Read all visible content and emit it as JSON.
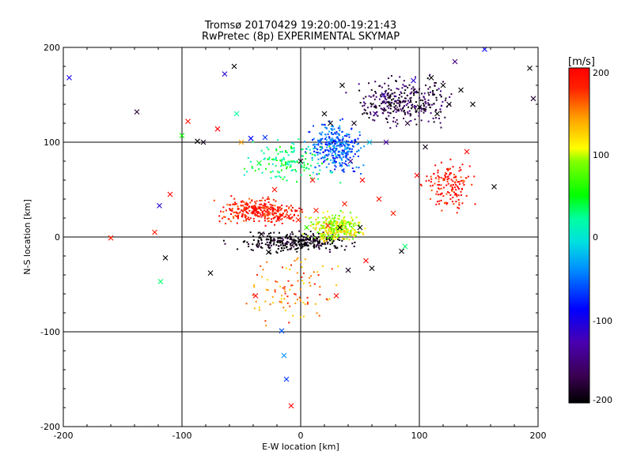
{
  "chart_data": {
    "type": "scatter",
    "title": "Tromsø 20170429 19:20:00-19:21:43",
    "subtitle": "RwPretec (8p) EXPERIMENTAL SKYMAP",
    "xlabel": "E-W location [km]",
    "ylabel": "N-S location [km]",
    "xlim": [
      -200,
      200
    ],
    "ylim": [
      -200,
      200
    ],
    "xticks": [
      "-200",
      "-100",
      "0",
      "100",
      "200"
    ],
    "yticks": [
      "-200",
      "-100",
      "0",
      "100",
      "200"
    ],
    "grid": "major lines at -100, 0, 100",
    "colorbar": {
      "label": "[m/s]",
      "min": -200,
      "max": 200,
      "ticks": [
        "200",
        "100",
        "0",
        "-100",
        "-200"
      ],
      "colormap": "rainbow: black -> violet -> blue -> cyan -> green -> yellow -> red"
    },
    "marker_styles": [
      "small dot",
      "x-cross"
    ],
    "points_x_cross": [
      {
        "x": -195,
        "y": 168,
        "v": -100
      },
      {
        "x": -160,
        "y": -1,
        "v": 180
      },
      {
        "x": -138,
        "y": 132,
        "v": -180
      },
      {
        "x": -123,
        "y": 5,
        "v": 180
      },
      {
        "x": -119,
        "y": 33,
        "v": -110
      },
      {
        "x": -118,
        "y": -47,
        "v": 30
      },
      {
        "x": -114,
        "y": -22,
        "v": -200
      },
      {
        "x": -110,
        "y": 45,
        "v": 200
      },
      {
        "x": -100,
        "y": 107,
        "v": 50
      },
      {
        "x": -95,
        "y": 122,
        "v": 190
      },
      {
        "x": -87,
        "y": 101,
        "v": -200
      },
      {
        "x": -82,
        "y": 100,
        "v": -190
      },
      {
        "x": -76,
        "y": -38,
        "v": -200
      },
      {
        "x": -70,
        "y": 114,
        "v": 200
      },
      {
        "x": -64,
        "y": 172,
        "v": -110
      },
      {
        "x": -56,
        "y": 180,
        "v": -200
      },
      {
        "x": -54,
        "y": 130,
        "v": 20
      },
      {
        "x": -50,
        "y": 100,
        "v": 140
      },
      {
        "x": -42,
        "y": 104,
        "v": -90
      },
      {
        "x": -38,
        "y": -62,
        "v": 200
      },
      {
        "x": -35,
        "y": 78,
        "v": 40
      },
      {
        "x": -33,
        "y": 3,
        "v": -200
      },
      {
        "x": -30,
        "y": 105,
        "v": -70
      },
      {
        "x": -27,
        "y": -16,
        "v": -200
      },
      {
        "x": -22,
        "y": 50,
        "v": 190
      },
      {
        "x": -18,
        "y": 20,
        "v": 200
      },
      {
        "x": -16,
        "y": -99,
        "v": -60
      },
      {
        "x": -14,
        "y": -125,
        "v": -40
      },
      {
        "x": -12,
        "y": -150,
        "v": -70
      },
      {
        "x": -10,
        "y": 22,
        "v": 190
      },
      {
        "x": -8,
        "y": -178,
        "v": 200
      },
      {
        "x": -5,
        "y": -6,
        "v": -190
      },
      {
        "x": -2,
        "y": 18,
        "v": 180
      },
      {
        "x": 0,
        "y": 80,
        "v": -200
      },
      {
        "x": 5,
        "y": 10,
        "v": 60
      },
      {
        "x": 10,
        "y": 60,
        "v": 190
      },
      {
        "x": 13,
        "y": 28,
        "v": 180
      },
      {
        "x": 16,
        "y": 100,
        "v": -60
      },
      {
        "x": 18,
        "y": -1,
        "v": 110
      },
      {
        "x": 20,
        "y": 130,
        "v": -200
      },
      {
        "x": 23,
        "y": 12,
        "v": 180
      },
      {
        "x": 25,
        "y": 120,
        "v": -200
      },
      {
        "x": 28,
        "y": 90,
        "v": -60
      },
      {
        "x": 30,
        "y": -62,
        "v": 190
      },
      {
        "x": 33,
        "y": 10,
        "v": -200
      },
      {
        "x": 35,
        "y": 160,
        "v": -200
      },
      {
        "x": 37,
        "y": 35,
        "v": 180
      },
      {
        "x": 40,
        "y": -35,
        "v": -190
      },
      {
        "x": 42,
        "y": 80,
        "v": -150
      },
      {
        "x": 45,
        "y": 120,
        "v": -190
      },
      {
        "x": 50,
        "y": 10,
        "v": -200
      },
      {
        "x": 52,
        "y": 60,
        "v": 200
      },
      {
        "x": 55,
        "y": -25,
        "v": 200
      },
      {
        "x": 58,
        "y": 100,
        "v": -20
      },
      {
        "x": 60,
        "y": -33,
        "v": -200
      },
      {
        "x": 63,
        "y": 130,
        "v": -140
      },
      {
        "x": 66,
        "y": 40,
        "v": 190
      },
      {
        "x": 70,
        "y": 150,
        "v": -120
      },
      {
        "x": 72,
        "y": 100,
        "v": -130
      },
      {
        "x": 75,
        "y": 140,
        "v": -200
      },
      {
        "x": 78,
        "y": 25,
        "v": 180
      },
      {
        "x": 80,
        "y": 135,
        "v": -170
      },
      {
        "x": 85,
        "y": -15,
        "v": -200
      },
      {
        "x": 88,
        "y": -10,
        "v": 30
      },
      {
        "x": 90,
        "y": 120,
        "v": -180
      },
      {
        "x": 95,
        "y": 165,
        "v": -110
      },
      {
        "x": 98,
        "y": 65,
        "v": 200
      },
      {
        "x": 100,
        "y": 137,
        "v": -200
      },
      {
        "x": 105,
        "y": 95,
        "v": -190
      },
      {
        "x": 110,
        "y": 168,
        "v": -200
      },
      {
        "x": 115,
        "y": 130,
        "v": -200
      },
      {
        "x": 120,
        "y": 160,
        "v": -200
      },
      {
        "x": 125,
        "y": 140,
        "v": -190
      },
      {
        "x": 130,
        "y": 185,
        "v": -150
      },
      {
        "x": 135,
        "y": 155,
        "v": -200
      },
      {
        "x": 140,
        "y": 90,
        "v": 200
      },
      {
        "x": 145,
        "y": 140,
        "v": -200
      },
      {
        "x": 155,
        "y": 198,
        "v": -90
      },
      {
        "x": 163,
        "y": 53,
        "v": -200
      },
      {
        "x": 193,
        "y": 178,
        "v": -200
      },
      {
        "x": 196,
        "y": 146,
        "v": -180
      }
    ],
    "point_clusters_small_dots": [
      {
        "region": "x 0..60, y 60..130",
        "v": -60,
        "approx_count": 1500
      },
      {
        "region": "x 30..140, y 110..175",
        "v": -170,
        "approx_count": 500
      },
      {
        "region": "x -80..10, y 10..45",
        "v": 190,
        "approx_count": 700
      },
      {
        "region": "x -70..60, y -20..10",
        "v": -200,
        "approx_count": 500
      },
      {
        "region": "x 0..60, y -10..30",
        "v": 100,
        "approx_count": 400
      },
      {
        "region": "x -60..40, y 50..110",
        "v": 30,
        "approx_count": 150
      },
      {
        "region": "x 100..150, y 20..90",
        "v": 190,
        "approx_count": 150
      },
      {
        "region": "x -60..40, y -100..-10",
        "v": 150,
        "approx_count": 100
      }
    ]
  }
}
